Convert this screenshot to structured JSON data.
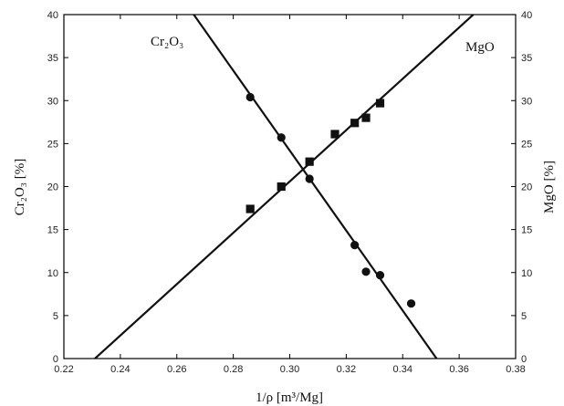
{
  "chart_data": {
    "type": "scatter",
    "xlabel": "1/ρ [m³/Mg]",
    "ylabel_left": "Cr₂O₃ [%]",
    "ylabel_right": "MgO [%]",
    "xlim": [
      0.22,
      0.38
    ],
    "ylim": [
      0,
      40
    ],
    "x_ticks": [
      0.22,
      0.24,
      0.26,
      0.28,
      0.3,
      0.32,
      0.34,
      0.36,
      0.38
    ],
    "y_ticks": [
      0,
      5,
      10,
      15,
      20,
      25,
      30,
      35,
      40
    ],
    "x_tick_labels": [
      "0.22",
      "0.24",
      "0.26",
      "0.28",
      "0.30",
      "0.32",
      "0.34",
      "0.36",
      "0.38"
    ],
    "y_tick_labels": [
      "0",
      "5",
      "10",
      "15",
      "20",
      "25",
      "30",
      "35",
      "40"
    ],
    "grid": false,
    "series": [
      {
        "name": "Cr₂O₃",
        "marker": "circle",
        "axis": "left",
        "points": [
          [
            0.286,
            30.4
          ],
          [
            0.297,
            25.7
          ],
          [
            0.307,
            20.9
          ],
          [
            0.323,
            13.2
          ],
          [
            0.327,
            10.1
          ],
          [
            0.332,
            9.7
          ],
          [
            0.343,
            6.4
          ]
        ],
        "fit_line": [
          [
            0.266,
            40.0
          ],
          [
            0.352,
            0.0
          ]
        ]
      },
      {
        "name": "MgO",
        "marker": "square",
        "axis": "right",
        "points": [
          [
            0.286,
            17.4
          ],
          [
            0.297,
            20.0
          ],
          [
            0.307,
            22.9
          ],
          [
            0.316,
            26.1
          ],
          [
            0.323,
            27.4
          ],
          [
            0.327,
            28.0
          ],
          [
            0.332,
            29.7
          ]
        ],
        "fit_line": [
          [
            0.231,
            0.0
          ],
          [
            0.365,
            40.0
          ]
        ]
      }
    ],
    "series_labels": [
      "Cr₂O₃",
      "MgO"
    ],
    "colors": {
      "ink": "#111111",
      "background": "#ffffff"
    }
  }
}
